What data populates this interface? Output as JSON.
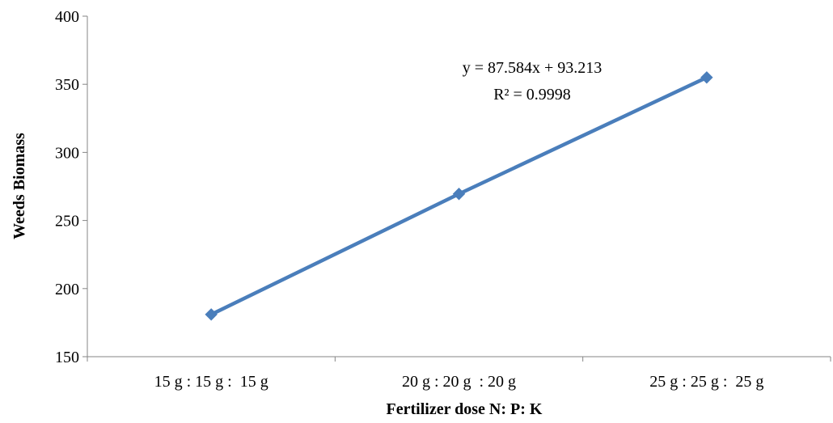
{
  "chart_data": {
    "type": "line",
    "title": "",
    "xlabel": "Fertilizer dose N: P: K",
    "ylabel": "Weeds Biomass",
    "categories": [
      "15 g : 15 g :  15 g",
      "20 g : 20 g  : 20 g",
      "25 g : 25 g :  25 g"
    ],
    "series": [
      {
        "values": [
          181,
          269.5,
          355
        ]
      }
    ],
    "ylim": [
      150,
      400
    ],
    "yticks": [
      150,
      200,
      250,
      300,
      350,
      400
    ],
    "grid": false,
    "legend": "none",
    "annotations": {
      "equation": "y = 87.584x   + 93.213",
      "r_squared": "R² = 0.9998"
    },
    "colors": {
      "series": "#4a7ebb",
      "axis": "#868686"
    }
  }
}
